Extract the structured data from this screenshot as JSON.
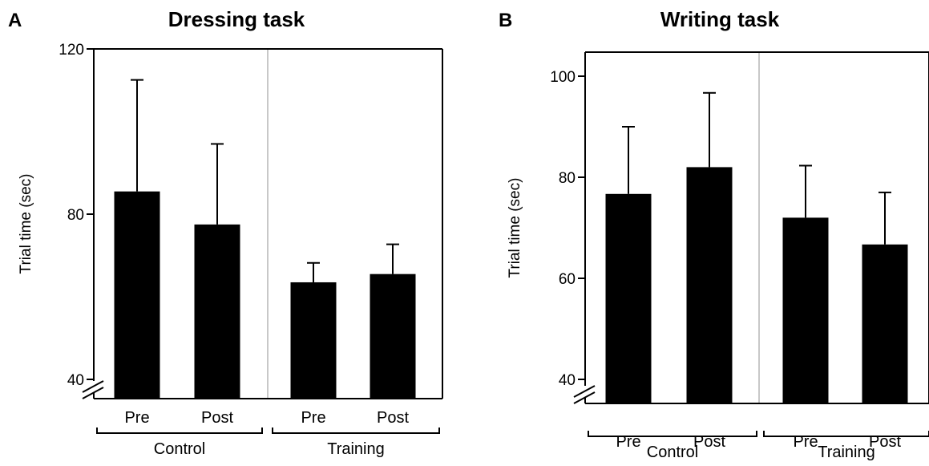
{
  "chart_data": [
    {
      "type": "bar",
      "panel": "A",
      "title": "Dressing task",
      "ylabel": "Trial time (sec)",
      "ylim": [
        40,
        120
      ],
      "yticks": [
        40,
        80,
        120
      ],
      "categories": [
        "Pre",
        "Post",
        "Pre",
        "Post"
      ],
      "groups": [
        {
          "label": "Control",
          "categories": [
            "Pre",
            "Post"
          ]
        },
        {
          "label": "Training",
          "categories": [
            "Pre",
            "Post"
          ]
        }
      ],
      "values": [
        85.5,
        77.5,
        63.5,
        65.5
      ],
      "error_upper": [
        112.5,
        97.0,
        68.2,
        72.7
      ],
      "color": "#000000"
    },
    {
      "type": "bar",
      "panel": "B",
      "title": "Writing task",
      "ylabel": "Trial time (sec)",
      "ylim": [
        40,
        105
      ],
      "yticks": [
        40,
        60,
        80,
        100
      ],
      "categories": [
        "Pre",
        "Post",
        "Pre",
        "Post"
      ],
      "groups": [
        {
          "label": "Control",
          "categories": [
            "Pre",
            "Post"
          ]
        },
        {
          "label": "Training",
          "categories": [
            "Pre",
            "Post"
          ]
        }
      ],
      "values": [
        76.7,
        82.0,
        72.0,
        66.7
      ],
      "error_upper": [
        90.0,
        96.7,
        82.3,
        77.0
      ],
      "color": "#000000"
    }
  ]
}
